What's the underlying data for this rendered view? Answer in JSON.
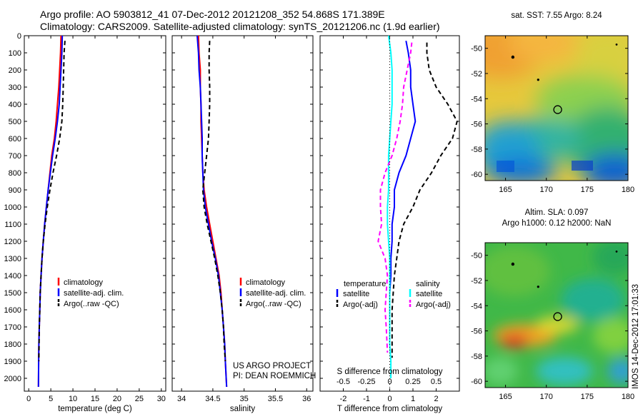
{
  "header": {
    "line1": "Argo profile: AO 5903812_41 07-Dec-2012 20121208_352 54.868S 171.389E",
    "line2": "Climatology: CARS2009. Satellite-adjusted climatology: synTS_20121206.nc (1.9d earlier)"
  },
  "colors": {
    "climatology": "#ff0000",
    "satellite": "#0000ff",
    "argo": "#000000",
    "sal_satellite": "#00ffff",
    "sal_argo": "#ff00ff"
  },
  "side_text": "IMOS 14-Dec-2012 17:01:33",
  "project_text": {
    "line1": "US ARGO PROJECT",
    "line2": "PI: DEAN ROEMMICH"
  },
  "chart_data": [
    {
      "type": "line",
      "panel": "temperature",
      "xlabel": "temperature (deg C)",
      "xlim": [
        -1,
        31
      ],
      "xticks": [
        0,
        5,
        10,
        15,
        20,
        25,
        30
      ],
      "ylim": [
        0,
        2075
      ],
      "yticks": [
        0,
        100,
        200,
        300,
        400,
        500,
        600,
        700,
        800,
        900,
        1000,
        1100,
        1200,
        1300,
        1400,
        1500,
        1600,
        1700,
        1800,
        1900,
        2000
      ],
      "y_reversed": true,
      "legend": [
        "climatology",
        "satellite-adj. clim.",
        "Argo(..raw -QC)"
      ],
      "series": [
        {
          "name": "climatology",
          "style": "solid",
          "color": "#ff0000",
          "x": [
            7.3,
            7.2,
            7.0,
            6.8,
            6.5,
            6.2,
            5.8,
            5.2,
            4.8,
            4.4,
            4.0,
            3.6,
            3.3,
            3.0,
            2.8,
            2.6,
            2.5,
            2.4,
            2.3,
            2.25,
            2.2
          ],
          "y": [
            0,
            100,
            200,
            300,
            400,
            500,
            600,
            700,
            800,
            900,
            1000,
            1100,
            1200,
            1300,
            1400,
            1500,
            1600,
            1700,
            1800,
            1900,
            2050
          ]
        },
        {
          "name": "satellite-adj. clim.",
          "style": "solid",
          "color": "#0000ff",
          "x": [
            7.6,
            7.5,
            7.3,
            7.1,
            6.9,
            6.5,
            6.0,
            5.4,
            4.9,
            4.4,
            4.0,
            3.6,
            3.3,
            3.0,
            2.8,
            2.6,
            2.5,
            2.4,
            2.3,
            2.25,
            2.2
          ],
          "y": [
            0,
            100,
            200,
            300,
            400,
            500,
            600,
            700,
            800,
            900,
            1000,
            1100,
            1200,
            1300,
            1400,
            1500,
            1600,
            1700,
            1800,
            1900,
            2050
          ]
        },
        {
          "name": "Argo(..raw -QC)",
          "style": "dashed",
          "color": "#000000",
          "x": [
            8.2,
            8.0,
            7.9,
            7.8,
            7.7,
            7.5,
            7.0,
            6.3,
            5.5,
            4.8,
            4.2,
            3.7,
            3.3,
            3.0,
            2.8,
            2.6,
            2.5,
            2.4,
            2.35,
            2.3
          ],
          "y": [
            30,
            100,
            200,
            300,
            400,
            500,
            600,
            700,
            800,
            900,
            1000,
            1100,
            1200,
            1300,
            1400,
            1500,
            1600,
            1700,
            1800,
            1900
          ]
        }
      ]
    },
    {
      "type": "line",
      "panel": "salinity",
      "xlabel": "salinity",
      "xlim": [
        33.85,
        36.1
      ],
      "xticks": [
        34,
        34.5,
        35,
        35.5,
        36
      ],
      "ylim": [
        0,
        2075
      ],
      "y_reversed": true,
      "legend": [
        "climatology",
        "satellite-adj. clim.",
        "Argo(..raw -QC)"
      ],
      "series": [
        {
          "name": "climatology",
          "style": "solid",
          "color": "#ff0000",
          "x": [
            34.27,
            34.28,
            34.3,
            34.3,
            34.31,
            34.31,
            34.32,
            34.33,
            34.34,
            34.36,
            34.4,
            34.45,
            34.5,
            34.55,
            34.6,
            34.63,
            34.65,
            34.67,
            34.69,
            34.7,
            34.72
          ],
          "y": [
            0,
            100,
            200,
            300,
            400,
            500,
            600,
            700,
            800,
            900,
            1000,
            1100,
            1200,
            1300,
            1400,
            1500,
            1600,
            1700,
            1800,
            1900,
            2050
          ]
        },
        {
          "name": "satellite-adj. clim.",
          "style": "solid",
          "color": "#0000ff",
          "x": [
            34.25,
            34.27,
            34.28,
            34.3,
            34.31,
            34.32,
            34.33,
            34.33,
            34.34,
            34.35,
            34.38,
            34.43,
            34.48,
            34.54,
            34.59,
            34.62,
            34.65,
            34.67,
            34.69,
            34.7,
            34.72
          ],
          "y": [
            0,
            100,
            200,
            300,
            400,
            500,
            600,
            700,
            800,
            900,
            1000,
            1100,
            1200,
            1300,
            1400,
            1500,
            1600,
            1700,
            1800,
            1900,
            2050
          ]
        },
        {
          "name": "Argo(..raw -QC)",
          "style": "dashed",
          "color": "#000000",
          "x": [
            34.45,
            34.44,
            34.44,
            34.45,
            34.45,
            34.44,
            34.43,
            34.4,
            34.37,
            34.34,
            34.36,
            34.41,
            34.47,
            34.53,
            34.58,
            34.62,
            34.65,
            34.67,
            34.68,
            34.7
          ],
          "y": [
            30,
            100,
            200,
            300,
            400,
            500,
            600,
            700,
            800,
            900,
            1000,
            1100,
            1200,
            1300,
            1400,
            1500,
            1600,
            1700,
            1800,
            1900
          ]
        }
      ]
    },
    {
      "type": "line",
      "panel": "difference",
      "xlabel": "T difference from climatology",
      "xlabel_top": "S difference from climatology",
      "xlim": [
        -3,
        3
      ],
      "xticks": [
        -2,
        -1,
        0,
        1,
        2
      ],
      "xticks_top": [
        -0.5,
        -0.25,
        0,
        0.25,
        0.5
      ],
      "ylim": [
        0,
        2075
      ],
      "y_reversed": true,
      "legend_left_title": "temperature",
      "legend_left": [
        "satellite",
        "Argo(-adj)"
      ],
      "legend_right_title": "salinity",
      "legend_right": [
        "satellite",
        "Argo(-adj)"
      ],
      "series": [
        {
          "name": "temperature satellite",
          "style": "solid",
          "color": "#0000ff",
          "x": [
            0.7,
            0.8,
            0.9,
            0.9,
            1.0,
            1.1,
            0.9,
            0.7,
            0.4,
            0.2,
            0.2,
            0.1,
            0.1,
            0.05,
            0.05,
            0.0,
            0.0,
            0.0,
            0.0
          ],
          "y": [
            30,
            100,
            200,
            300,
            400,
            500,
            600,
            700,
            800,
            900,
            1000,
            1100,
            1200,
            1300,
            1400,
            1500,
            1600,
            1700,
            1800
          ]
        },
        {
          "name": "temperature Argo(-adj)",
          "style": "dashed",
          "color": "#000000",
          "x": [
            1.6,
            1.6,
            1.7,
            2.0,
            2.5,
            2.9,
            2.7,
            2.2,
            1.8,
            1.3,
            1.0,
            0.6,
            0.4,
            0.3,
            0.2,
            0.15,
            0.1,
            0.1,
            0.1,
            0.1
          ],
          "y": [
            40,
            100,
            200,
            300,
            400,
            500,
            600,
            700,
            800,
            900,
            1000,
            1100,
            1200,
            1300,
            1400,
            1500,
            1600,
            1700,
            1800,
            1880
          ]
        },
        {
          "name": "salinity satellite",
          "style": "solid",
          "color": "#00ffff",
          "x": [
            -0.05,
            0.05,
            0.1,
            0.1,
            0.1,
            0.05,
            0.0,
            -0.05,
            -0.05,
            -0.05,
            -0.1,
            -0.1,
            -0.05,
            0.0,
            0.0,
            0.0,
            0.0,
            0.0,
            0.0,
            0.05,
            0.05
          ],
          "y": [
            0,
            100,
            200,
            300,
            400,
            500,
            600,
            700,
            800,
            900,
            1000,
            1100,
            1200,
            1300,
            1400,
            1500,
            1600,
            1700,
            1800,
            1900,
            2000
          ]
        },
        {
          "name": "salinity Argo(-adj)",
          "style": "dashed",
          "color": "#ff00ff",
          "x": [
            0.95,
            0.9,
            0.75,
            0.6,
            0.55,
            0.45,
            0.3,
            0.1,
            -0.2,
            -0.4,
            -0.4,
            -0.35,
            -0.5,
            -0.2,
            -0.1,
            -0.15,
            -0.2,
            -0.15,
            -0.1
          ],
          "y": [
            40,
            100,
            200,
            300,
            400,
            500,
            600,
            700,
            800,
            900,
            1000,
            1100,
            1200,
            1300,
            1400,
            1500,
            1600,
            1700,
            1850
          ]
        }
      ]
    },
    {
      "type": "heatmap",
      "panel": "sst_map",
      "title": "sat. SST: 7.55 Argo: 8.24",
      "xlim": [
        162.5,
        180
      ],
      "ylim": [
        -60.5,
        -49
      ],
      "xticks": [
        165,
        170,
        175,
        180
      ],
      "yticks": [
        -50,
        -52,
        -54,
        -56,
        -58,
        -60
      ],
      "argo_position": [
        171.389,
        -54.868
      ]
    },
    {
      "type": "heatmap",
      "panel": "sla_map",
      "title_line1": "Altim. SLA: 0.097",
      "title_line2": "Argo h1000: 0.12 h2000: NaN",
      "xlim": [
        162.5,
        180
      ],
      "ylim": [
        -60.5,
        -49
      ],
      "xticks": [
        165,
        170,
        175,
        180
      ],
      "yticks": [
        -50,
        -52,
        -54,
        -56,
        -58,
        -60
      ],
      "argo_position": [
        171.389,
        -54.868
      ]
    }
  ]
}
